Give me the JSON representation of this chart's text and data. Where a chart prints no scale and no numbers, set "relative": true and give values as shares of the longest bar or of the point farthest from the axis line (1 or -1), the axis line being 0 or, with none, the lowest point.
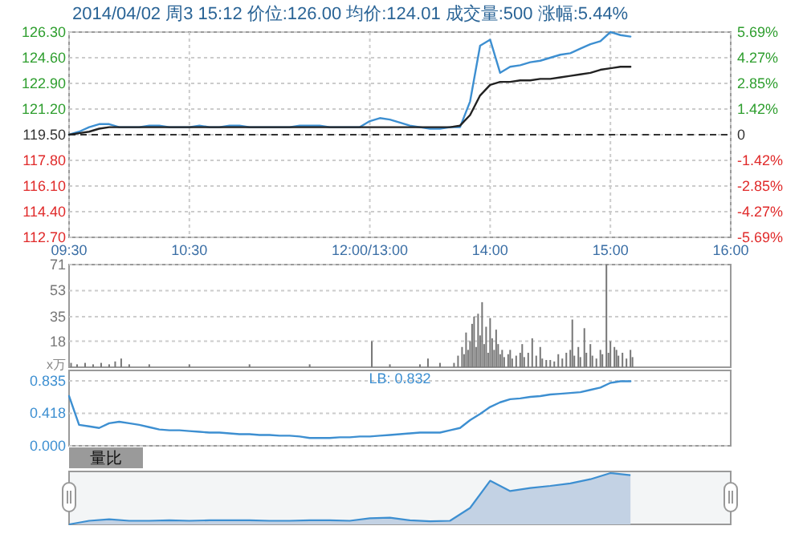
{
  "chart_data": [
    {
      "type": "line",
      "title": "2014/04/02 周3 15:12 价位:126.00 均价:124.01 成交量:500 涨幅:5.44%",
      "categories": [
        "09:30",
        null,
        null,
        null,
        null,
        null,
        null,
        null,
        null,
        null,
        null,
        null,
        "10:30",
        null,
        null,
        null,
        null,
        null,
        null,
        null,
        null,
        null,
        null,
        null,
        null,
        null,
        null,
        null,
        null,
        null,
        "12:00/13:00",
        null,
        null,
        null,
        null,
        null,
        null,
        null,
        null,
        null,
        null,
        null,
        "14:00",
        null,
        null,
        null,
        null,
        null,
        null,
        null,
        null,
        null,
        null,
        null,
        "15:00",
        null,
        null,
        null,
        null,
        null,
        null,
        null,
        null,
        null,
        null,
        null,
        "16:00"
      ],
      "ylim": [
        112.7,
        126.3
      ],
      "yticks": [
        {
          "value": 112.7,
          "label": "112.70"
        },
        {
          "value": 114.4,
          "label": "114.40"
        },
        {
          "value": 116.1,
          "label": "116.10"
        },
        {
          "value": 117.8,
          "label": "117.80"
        },
        {
          "value": 119.5,
          "label": "119.50"
        },
        {
          "value": 121.2,
          "label": "121.20"
        },
        {
          "value": 122.9,
          "label": "122.90"
        },
        {
          "value": 124.6,
          "label": "124.60"
        },
        {
          "value": 126.3,
          "label": "126.30"
        }
      ],
      "y2lim": [
        -5.69,
        5.69
      ],
      "y2ticks": [
        {
          "value": -5.69,
          "label": "-5.69%"
        },
        {
          "value": -4.27,
          "label": "-4.27%"
        },
        {
          "value": -2.85,
          "label": "-2.85%"
        },
        {
          "value": -1.42,
          "label": "-1.42%"
        },
        0,
        {
          "value": 1.42,
          "label": "1.42%"
        },
        {
          "value": 2.85,
          "label": "2.85%"
        },
        {
          "value": 4.27,
          "label": "4.27%"
        },
        {
          "value": 5.69,
          "label": "5.69%"
        }
      ],
      "grid": true,
      "ref_lines": [
        {
          "axis": "y",
          "value": 119.5,
          "color": "#333333",
          "line_style": "dashed"
        }
      ],
      "series": [
        {
          "color": "#3d8fd1",
          "values": [
            119.5,
            119.7,
            120.0,
            120.2,
            120.2,
            120.0,
            120.0,
            120.0,
            120.1,
            120.1,
            120.0,
            120.0,
            120.0,
            120.1,
            120.0,
            120.0,
            120.1,
            120.1,
            120.0,
            120.0,
            120.0,
            120.0,
            120.0,
            120.1,
            120.1,
            120.1,
            120.0,
            120.0,
            120.0,
            120.0,
            120.4,
            120.6,
            120.5,
            120.3,
            120.1,
            120.0,
            119.9,
            119.9,
            120.0,
            120.0,
            121.7,
            125.4,
            125.8,
            123.6,
            124.0,
            124.1,
            124.3,
            124.4,
            124.6,
            124.8,
            124.9,
            125.2,
            125.5,
            125.7,
            126.3,
            126.1,
            126.0,
            null,
            null,
            null,
            null,
            null,
            null,
            null,
            null,
            null,
            null
          ]
        },
        {
          "color": "#222222",
          "values": [
            119.5,
            119.6,
            119.7,
            119.9,
            120.0,
            120.0,
            120.0,
            120.0,
            120.0,
            120.0,
            120.0,
            120.0,
            120.0,
            120.0,
            120.0,
            120.0,
            120.0,
            120.0,
            120.0,
            120.0,
            120.0,
            120.0,
            120.0,
            120.0,
            120.0,
            120.0,
            120.0,
            120.0,
            120.0,
            120.0,
            120.0,
            120.0,
            120.0,
            120.0,
            120.0,
            120.0,
            120.0,
            120.0,
            120.0,
            120.1,
            120.8,
            122.1,
            122.8,
            123.0,
            123.0,
            123.1,
            123.1,
            123.2,
            123.2,
            123.3,
            123.4,
            123.5,
            123.6,
            123.8,
            123.9,
            124.0,
            124.0,
            null,
            null,
            null,
            null,
            null,
            null,
            null,
            null,
            null,
            null
          ]
        }
      ]
    },
    {
      "type": "bar",
      "ylabel": "x万",
      "ylim": [
        0,
        71
      ],
      "yticks": [
        18,
        35,
        53,
        71
      ],
      "grid": "y",
      "tick_labels": "y",
      "categories": [
        null,
        null,
        null,
        null,
        null,
        null,
        null,
        null,
        null,
        null,
        null,
        null,
        null,
        null,
        null,
        null,
        null,
        null,
        null,
        null,
        null,
        null,
        null,
        null,
        null,
        null,
        null,
        null,
        null,
        null,
        null,
        null,
        null,
        null,
        null,
        null,
        null,
        null,
        null,
        null,
        null,
        null,
        null,
        null,
        null,
        null,
        null,
        null,
        null,
        null,
        null,
        null,
        null,
        null,
        null,
        null,
        null,
        null,
        null,
        null,
        null,
        null,
        null,
        null,
        null,
        null,
        null,
        null,
        null,
        null,
        null,
        null,
        null,
        null,
        null,
        null,
        null,
        null,
        null,
        null,
        null,
        null,
        null,
        null,
        null,
        null,
        null,
        null,
        null,
        null,
        null,
        null,
        null,
        null,
        null,
        null,
        null,
        null,
        null,
        null,
        null,
        null,
        null,
        null,
        null,
        null,
        null,
        null,
        null,
        null,
        null,
        null,
        null,
        null,
        null,
        null,
        null,
        null,
        null,
        null,
        null,
        null,
        null,
        null,
        null,
        null,
        null,
        null,
        null,
        null,
        null,
        null,
        null,
        null,
        null,
        null,
        null,
        null,
        null,
        null,
        null,
        null,
        null,
        null,
        null,
        null,
        null,
        null,
        null,
        null,
        null,
        null,
        null,
        null,
        null,
        null,
        null,
        null,
        null,
        null,
        null,
        null,
        null,
        null,
        null,
        null,
        null,
        null,
        null,
        null,
        null,
        null,
        null,
        null,
        null,
        null,
        null,
        null,
        null,
        null,
        null,
        null,
        null,
        null,
        null,
        null,
        null,
        null,
        null,
        null,
        null,
        null,
        null,
        null,
        null,
        null,
        null,
        null,
        null,
        null,
        null,
        null,
        null,
        null,
        null,
        null,
        null,
        null,
        null,
        null,
        null,
        null,
        null,
        null,
        null,
        null,
        null,
        null,
        null,
        null,
        null,
        null,
        null,
        null,
        null,
        null,
        null,
        null,
        null,
        null,
        null,
        null,
        null,
        null,
        null,
        null,
        null,
        null,
        null,
        null,
        null,
        null,
        null,
        null,
        null,
        null,
        null,
        null,
        null,
        null,
        null,
        null,
        null,
        null,
        null,
        null,
        null,
        null,
        null,
        null,
        null,
        null,
        null,
        null,
        null,
        null,
        null,
        null,
        null,
        null,
        null,
        null,
        null,
        null,
        null,
        null,
        null,
        null,
        null,
        null,
        null,
        null,
        null,
        null,
        null,
        null,
        null,
        null,
        null,
        null,
        null,
        null,
        null,
        null,
        null,
        null,
        null,
        null,
        null,
        null,
        null,
        null,
        null,
        null,
        null,
        null,
        null,
        null,
        null,
        null,
        null,
        null,
        null,
        null,
        null,
        null,
        null,
        null,
        null,
        null,
        null,
        null,
        null,
        null,
        null,
        null,
        null,
        null,
        null,
        null,
        null
      ],
      "series": [
        {
          "color": "#777777",
          "values": [
            null,
            3,
            null,
            null,
            2,
            null,
            null,
            null,
            3,
            null,
            null,
            null,
            2,
            null,
            null,
            null,
            3,
            null,
            null,
            null,
            2,
            null,
            null,
            4,
            null,
            null,
            6,
            null,
            null,
            null,
            2,
            null,
            null,
            null,
            null,
            null,
            null,
            null,
            null,
            null,
            2,
            null,
            null,
            null,
            null,
            null,
            null,
            null,
            null,
            null,
            null,
            null,
            null,
            null,
            null,
            null,
            null,
            null,
            null,
            null,
            2,
            null,
            null,
            null,
            null,
            null,
            null,
            null,
            null,
            null,
            null,
            null,
            null,
            null,
            null,
            null,
            null,
            null,
            null,
            null,
            null,
            null,
            null,
            null,
            null,
            null,
            null,
            null,
            null,
            null,
            2,
            null,
            null,
            null,
            null,
            null,
            null,
            null,
            null,
            null,
            null,
            null,
            null,
            null,
            null,
            null,
            null,
            null,
            null,
            null,
            null,
            null,
            null,
            null,
            null,
            null,
            null,
            null,
            null,
            null,
            2,
            null,
            null,
            null,
            null,
            null,
            null,
            null,
            null,
            null,
            null,
            null,
            null,
            null,
            null,
            null,
            null,
            null,
            null,
            null,
            null,
            null,
            null,
            null,
            null,
            null,
            null,
            null,
            null,
            null,
            null,
            18,
            null,
            null,
            null,
            null,
            null,
            null,
            null,
            null,
            2,
            null,
            null,
            null,
            null,
            null,
            null,
            null,
            null,
            null,
            null,
            null,
            null,
            null,
            null,
            2,
            null,
            null,
            null,
            6,
            null,
            null,
            null,
            null,
            null,
            3,
            null,
            null,
            null,
            null,
            null,
            null,
            3,
            null,
            8,
            null,
            14,
            9,
            24,
            12,
            18,
            30,
            35,
            14,
            37,
            22,
            45,
            16,
            28,
            10,
            34,
            20,
            12,
            26,
            16,
            9,
            12,
            7,
            null,
            9,
            12,
            6,
            null,
            8,
            null,
            10,
            16,
            7,
            null,
            10,
            null,
            20,
            null,
            8,
            null,
            14,
            6,
            null,
            5,
            null,
            5,
            null,
            4,
            null,
            9,
            null,
            6,
            null,
            10,
            null,
            12,
            33,
            8,
            null,
            14,
            7,
            null,
            27,
            10,
            null,
            16,
            8,
            null,
            6,
            null,
            12,
            9,
            null,
            71,
            10,
            18,
            null,
            14,
            12,
            8,
            null,
            10,
            null,
            6,
            null,
            12,
            7,
            null,
            null,
            null,
            null,
            null,
            null,
            null,
            null,
            null,
            null,
            null,
            null,
            null,
            null,
            null,
            null,
            null,
            null,
            null,
            null,
            null,
            null,
            null,
            null,
            null,
            null,
            null,
            null,
            null,
            null,
            null,
            null,
            null,
            null,
            null,
            null,
            null,
            null,
            null,
            null,
            null,
            null,
            null,
            null,
            null,
            null,
            null,
            null,
            null
          ]
        }
      ]
    },
    {
      "type": "line",
      "annotations": [
        "LB: 0.832"
      ],
      "ylim": [
        0,
        0.97
      ],
      "yticks": [
        {
          "value": 0,
          "label": "0.000"
        },
        0.418,
        0.835
      ],
      "grid": "y",
      "tick_labels": "y",
      "categories": [
        null,
        null,
        null,
        null,
        null,
        null,
        null,
        null,
        null,
        null,
        null,
        null,
        null,
        null,
        null,
        null,
        null,
        null,
        null,
        null,
        null,
        null,
        null,
        null,
        null,
        null,
        null,
        null,
        null,
        null,
        null,
        null,
        null,
        null,
        null,
        null,
        null,
        null,
        null,
        null,
        null,
        null,
        null,
        null,
        null,
        null,
        null,
        null,
        null,
        null,
        null,
        null,
        null,
        null,
        null,
        null,
        null,
        null,
        null,
        null,
        null,
        null,
        null,
        null,
        null,
        null,
        null
      ],
      "series": [
        {
          "color": "#3d8fd1",
          "values": [
            0.64,
            0.27,
            0.25,
            0.23,
            0.29,
            0.31,
            0.29,
            0.27,
            0.24,
            0.21,
            0.2,
            0.2,
            0.19,
            0.18,
            0.17,
            0.17,
            0.16,
            0.15,
            0.15,
            0.14,
            0.14,
            0.13,
            0.13,
            0.12,
            0.1,
            0.1,
            0.1,
            0.11,
            0.11,
            0.12,
            0.12,
            0.13,
            0.14,
            0.15,
            0.16,
            0.17,
            0.17,
            0.17,
            0.2,
            0.23,
            0.33,
            0.41,
            0.5,
            0.56,
            0.6,
            0.61,
            0.63,
            0.64,
            0.66,
            0.67,
            0.68,
            0.69,
            0.72,
            0.75,
            0.81,
            0.83,
            0.83,
            null,
            null,
            null,
            null,
            null,
            null,
            null,
            null,
            null,
            null
          ]
        }
      ]
    },
    {
      "type": "area",
      "title": "量比",
      "relative": true,
      "tick_labels": false,
      "categories": [
        null,
        null,
        null,
        null,
        null,
        null,
        null,
        null,
        null,
        null,
        null,
        null,
        null,
        null,
        null,
        null,
        null,
        null,
        null,
        null,
        null,
        null,
        null,
        null,
        null,
        null,
        null,
        null,
        null,
        null,
        null,
        null,
        null,
        null
      ],
      "series": [
        {
          "color": "#3d8fd1",
          "values": [
            0,
            0.07,
            0.1,
            0.07,
            0.07,
            0.08,
            0.07,
            0.08,
            0.08,
            0.08,
            0.07,
            0.07,
            0.08,
            0.08,
            0.07,
            0.12,
            0.13,
            0.08,
            0.06,
            0.07,
            0.32,
            0.85,
            0.65,
            0.71,
            0.75,
            0.8,
            0.88,
            1,
            0.96,
            null,
            null,
            null,
            null,
            null
          ]
        }
      ]
    }
  ]
}
